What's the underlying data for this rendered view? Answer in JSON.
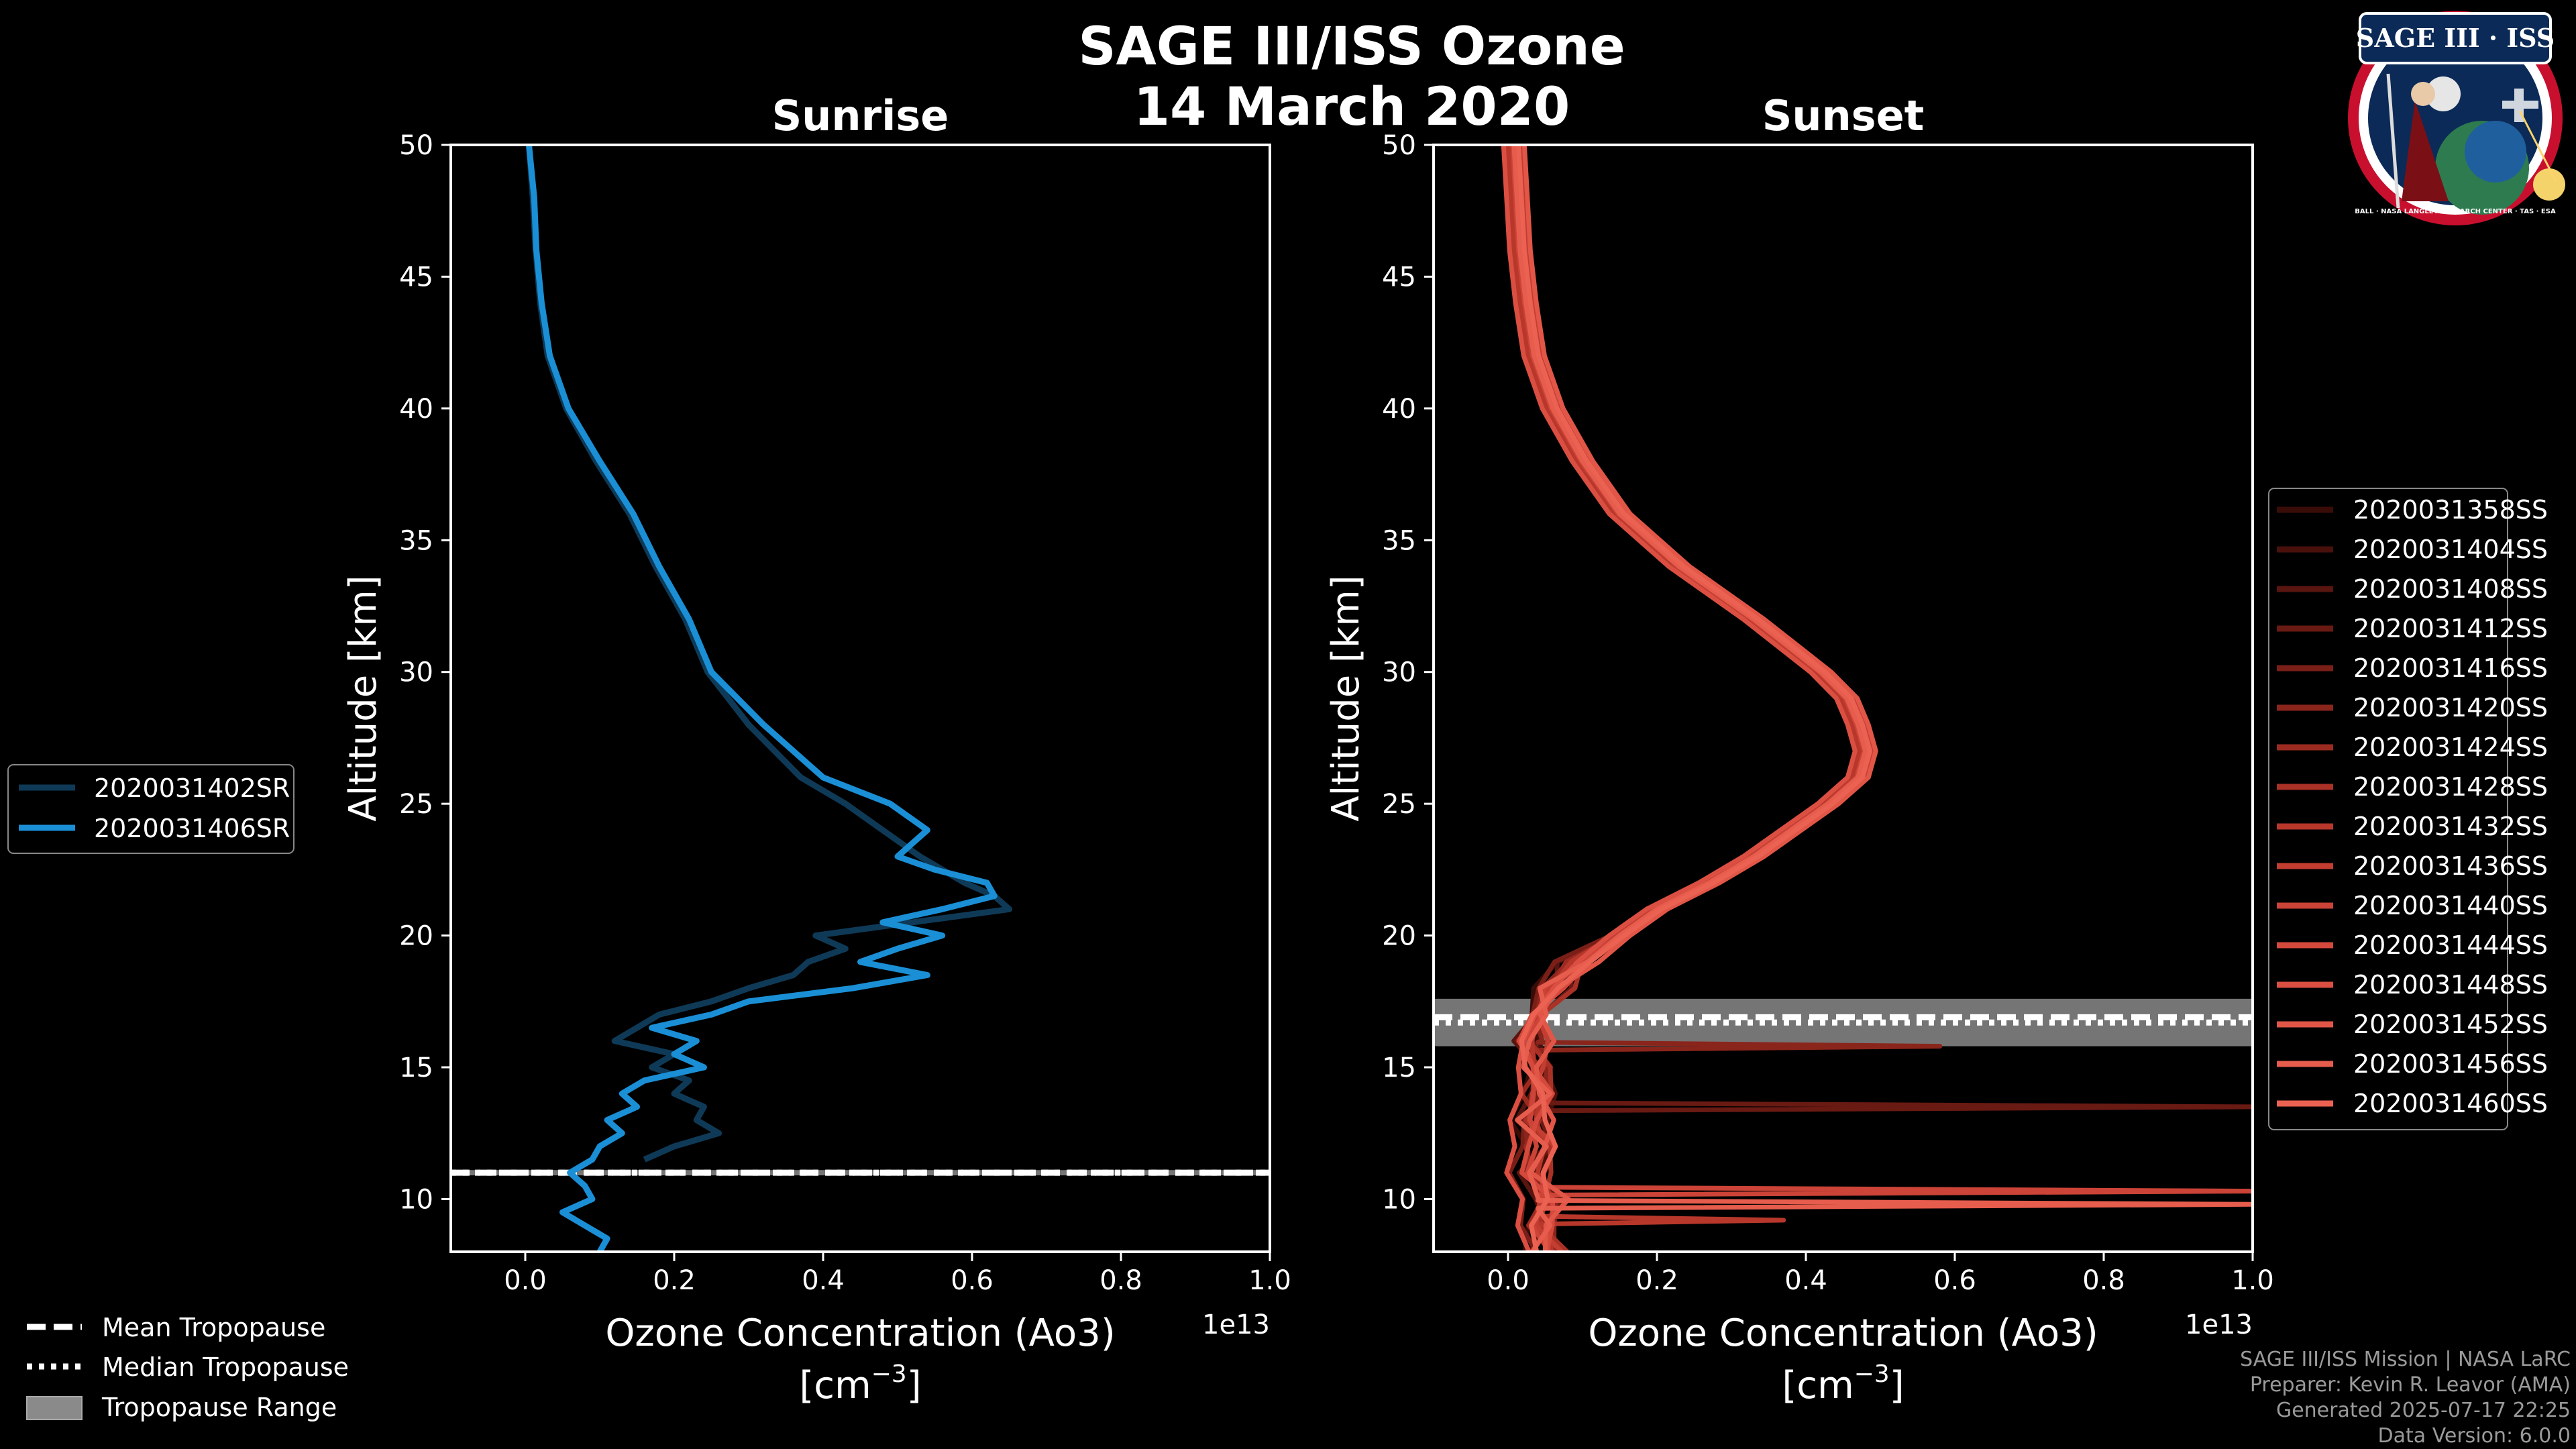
{
  "figure": {
    "title_line1": "SAGE III/ISS Ozone",
    "title_line2": "14 March 2020",
    "credits": [
      "SAGE III/ISS Mission | NASA LaRC",
      "Preparer: Kevin R. Leavor (AMA)",
      "Generated 2025-07-17 22:25",
      "Data Version: 6.0.0"
    ],
    "logo": {
      "text": "SAGE III · ISS",
      "ring_text": "BALL · NASA LANGLEY RESEARCH CENTER · TAS · ESA"
    },
    "tropopause_legend": {
      "mean": "Mean Tropopause",
      "median": "Median Tropopause",
      "range": "Tropopause Range"
    }
  },
  "chart_data": [
    {
      "type": "line",
      "title": "Sunrise",
      "xlabel": "Ozone Concentration (Ao3)",
      "xlabel_units": "[cm",
      "xlabel_exp": "−3",
      "xlabel_close": "]",
      "ylabel": "Altitude [km]",
      "x_offset_label": "1e13",
      "xlim": [
        -0.1,
        1.0
      ],
      "ylim": [
        8,
        50
      ],
      "xticks": [
        0.0,
        0.2,
        0.4,
        0.6,
        0.8,
        1.0
      ],
      "xtick_labels": [
        "0.0",
        "0.2",
        "0.4",
        "0.6",
        "0.8",
        "1.0"
      ],
      "yticks": [
        10,
        15,
        20,
        25,
        30,
        35,
        40,
        45,
        50
      ],
      "ytick_labels": [
        "10",
        "15",
        "20",
        "25",
        "30",
        "35",
        "40",
        "45",
        "50"
      ],
      "tropopause": {
        "mean": 11.0,
        "median": 11.0,
        "min": 10.9,
        "max": 11.1
      },
      "series": [
        {
          "name": "2020031402SR",
          "color": "#0f3a57",
          "alt": [
            50,
            48,
            46,
            44,
            42,
            40,
            38,
            36,
            34,
            32,
            30,
            28,
            26,
            25,
            24,
            23,
            22,
            21.5,
            21,
            20.5,
            20,
            19.5,
            19,
            18.5,
            18,
            17.5,
            17,
            16.5,
            16,
            15.5,
            15,
            14.5,
            14,
            13.5,
            13,
            12.5,
            12,
            11.5
          ],
          "values": [
            0.005,
            0.01,
            0.014,
            0.02,
            0.03,
            0.055,
            0.095,
            0.14,
            0.175,
            0.215,
            0.245,
            0.3,
            0.37,
            0.43,
            0.48,
            0.53,
            0.59,
            0.63,
            0.65,
            0.52,
            0.39,
            0.43,
            0.38,
            0.36,
            0.3,
            0.25,
            0.18,
            0.15,
            0.12,
            0.2,
            0.17,
            0.22,
            0.2,
            0.24,
            0.23,
            0.26,
            0.2,
            0.16
          ]
        },
        {
          "name": "2020031406SR",
          "color": "#1a8fd6",
          "alt": [
            50,
            48,
            46,
            44,
            42,
            40,
            38,
            36,
            34,
            32,
            30,
            28,
            26,
            25,
            24,
            23,
            22.5,
            22,
            21.5,
            21,
            20.5,
            20,
            19.5,
            19,
            18.5,
            18,
            17.5,
            17,
            16.5,
            16,
            15.5,
            15,
            14.5,
            14,
            13.5,
            13,
            12.5,
            12,
            11.5,
            11,
            10.5,
            10,
            9.5,
            9,
            8.5,
            8
          ],
          "values": [
            0.005,
            0.012,
            0.015,
            0.022,
            0.033,
            0.058,
            0.1,
            0.145,
            0.18,
            0.22,
            0.25,
            0.32,
            0.4,
            0.49,
            0.54,
            0.5,
            0.55,
            0.62,
            0.63,
            0.56,
            0.48,
            0.56,
            0.5,
            0.45,
            0.54,
            0.44,
            0.3,
            0.25,
            0.17,
            0.23,
            0.2,
            0.24,
            0.16,
            0.13,
            0.15,
            0.11,
            0.13,
            0.1,
            0.09,
            0.06,
            0.08,
            0.09,
            0.05,
            0.08,
            0.11,
            0.1
          ]
        }
      ]
    },
    {
      "type": "line",
      "title": "Sunset",
      "xlabel": "Ozone Concentration (Ao3)",
      "xlabel_units": "[cm",
      "xlabel_exp": "−3",
      "xlabel_close": "]",
      "ylabel": "Altitude [km]",
      "x_offset_label": "1e13",
      "xlim": [
        -0.1,
        1.0
      ],
      "ylim": [
        8,
        50
      ],
      "xticks": [
        0.0,
        0.2,
        0.4,
        0.6,
        0.8,
        1.0
      ],
      "xtick_labels": [
        "0.0",
        "0.2",
        "0.4",
        "0.6",
        "0.8",
        "1.0"
      ],
      "yticks": [
        10,
        15,
        20,
        25,
        30,
        35,
        40,
        45,
        50
      ],
      "ytick_labels": [
        "10",
        "15",
        "20",
        "25",
        "30",
        "35",
        "40",
        "45",
        "50"
      ],
      "tropopause": {
        "mean": 16.9,
        "median": 16.7,
        "min": 15.8,
        "max": 17.6
      },
      "base_profile": {
        "alt": [
          50,
          48,
          46,
          44,
          42,
          40,
          38,
          36,
          34,
          32,
          30,
          29,
          28,
          27,
          26,
          25,
          24,
          23,
          22,
          21,
          20,
          19,
          18,
          17,
          16,
          15,
          14,
          13,
          12,
          11,
          10,
          9,
          8
        ],
        "values": [
          0.008,
          0.012,
          0.016,
          0.024,
          0.035,
          0.06,
          0.1,
          0.15,
          0.23,
          0.33,
          0.42,
          0.455,
          0.47,
          0.48,
          0.47,
          0.43,
          0.38,
          0.33,
          0.27,
          0.2,
          0.15,
          0.09,
          0.06,
          0.04,
          0.03,
          0.03,
          0.04,
          0.03,
          0.04,
          0.03,
          0.05,
          0.04,
          0.05
        ]
      },
      "series": [
        {
          "name": "2020031358SS",
          "color": "#3a0c08",
          "x_shift": -0.01,
          "spikes": []
        },
        {
          "name": "2020031404SS",
          "color": "#4a100b",
          "x_shift": 0.006,
          "spikes": []
        },
        {
          "name": "2020031408SS",
          "color": "#59150f",
          "x_shift": -0.006,
          "spikes": []
        },
        {
          "name": "2020031412SS",
          "color": "#691a13",
          "x_shift": 0.01,
          "spikes": [
            {
              "alt": 13.5,
              "value": 1.0
            }
          ]
        },
        {
          "name": "2020031416SS",
          "color": "#7a1f17",
          "x_shift": -0.012,
          "spikes": []
        },
        {
          "name": "2020031420SS",
          "color": "#8a251c",
          "x_shift": 0.004,
          "spikes": [
            {
              "alt": 15.8,
              "value": 0.58
            }
          ]
        },
        {
          "name": "2020031424SS",
          "color": "#9b2b21",
          "x_shift": -0.004,
          "spikes": []
        },
        {
          "name": "2020031428SS",
          "color": "#aa3126",
          "x_shift": 0.012,
          "spikes": []
        },
        {
          "name": "2020031432SS",
          "color": "#b8372b",
          "x_shift": -0.008,
          "spikes": [
            {
              "alt": 9.2,
              "value": 0.37
            }
          ]
        },
        {
          "name": "2020031436SS",
          "color": "#c33d31",
          "x_shift": 0.008,
          "spikes": []
        },
        {
          "name": "2020031440SS",
          "color": "#cc4337",
          "x_shift": -0.002,
          "spikes": [
            {
              "alt": 10.3,
              "value": 1.0
            }
          ]
        },
        {
          "name": "2020031444SS",
          "color": "#d4493c",
          "x_shift": 0.002,
          "spikes": []
        },
        {
          "name": "2020031448SS",
          "color": "#db4f42",
          "x_shift": -0.014,
          "spikes": []
        },
        {
          "name": "2020031452SS",
          "color": "#e15647",
          "x_shift": 0.014,
          "spikes": []
        },
        {
          "name": "2020031456SS",
          "color": "#e65c4d",
          "x_shift": 0.0,
          "spikes": [
            {
              "alt": 9.8,
              "value": 1.0
            }
          ]
        },
        {
          "name": "2020031460SS",
          "color": "#eb6252",
          "x_shift": 0.006,
          "spikes": []
        }
      ]
    }
  ]
}
